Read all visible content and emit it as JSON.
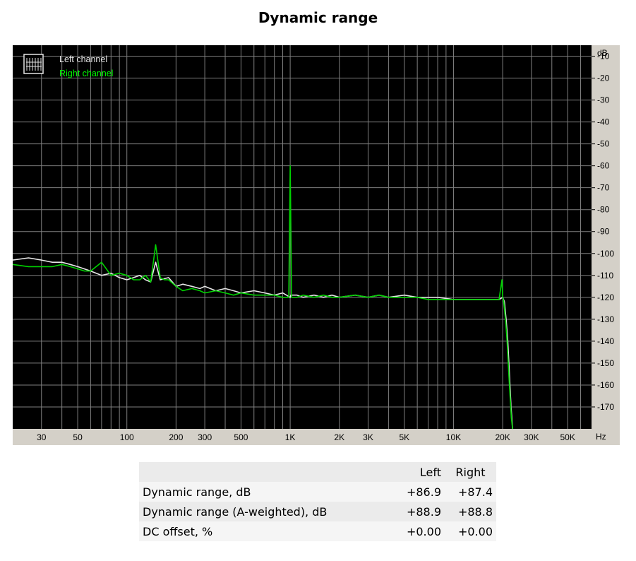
{
  "page": {
    "title": "Dynamic range"
  },
  "colors": {
    "plot_background": "#000000",
    "panel_background": "#d4d0c8",
    "grid": "#7f7f7f",
    "left_channel": "#e6e6e6",
    "right_channel": "#00d200",
    "legend_right_text": "#00ff00"
  },
  "chart_data": {
    "type": "line",
    "title": "Dynamic range",
    "x_unit": "Hz",
    "y_unit": "dB",
    "x_scale": "log",
    "xlim": [
      20,
      70000
    ],
    "ylim": [
      -180,
      -5
    ],
    "grid": true,
    "legend_position": "top-left",
    "x_ticks": [
      {
        "value": 30,
        "label": "30"
      },
      {
        "value": 50,
        "label": "50"
      },
      {
        "value": 100,
        "label": "100"
      },
      {
        "value": 200,
        "label": "200"
      },
      {
        "value": 300,
        "label": "300"
      },
      {
        "value": 500,
        "label": "500"
      },
      {
        "value": 1000,
        "label": "1K"
      },
      {
        "value": 2000,
        "label": "2K"
      },
      {
        "value": 3000,
        "label": "3K"
      },
      {
        "value": 5000,
        "label": "5K"
      },
      {
        "value": 10000,
        "label": "10K"
      },
      {
        "value": 20000,
        "label": "20K"
      },
      {
        "value": 30000,
        "label": "30K"
      },
      {
        "value": 50000,
        "label": "50K"
      }
    ],
    "y_ticks": [
      {
        "value": -10,
        "label": "-10"
      },
      {
        "value": -20,
        "label": "-20"
      },
      {
        "value": -30,
        "label": "-30"
      },
      {
        "value": -40,
        "label": "-40"
      },
      {
        "value": -50,
        "label": "-50"
      },
      {
        "value": -60,
        "label": "-60"
      },
      {
        "value": -70,
        "label": "-70"
      },
      {
        "value": -80,
        "label": "-80"
      },
      {
        "value": -90,
        "label": "-90"
      },
      {
        "value": -100,
        "label": "-100"
      },
      {
        "value": -110,
        "label": "-110"
      },
      {
        "value": -120,
        "label": "-120"
      },
      {
        "value": -130,
        "label": "-130"
      },
      {
        "value": -140,
        "label": "-140"
      },
      {
        "value": -150,
        "label": "-150"
      },
      {
        "value": -160,
        "label": "-160"
      },
      {
        "value": -170,
        "label": "-170"
      }
    ],
    "series": [
      {
        "name": "Left channel",
        "color": "#e6e6e6",
        "x": [
          20,
          25,
          30,
          35,
          40,
          45,
          50,
          60,
          70,
          80,
          90,
          100,
          110,
          120,
          130,
          140,
          150,
          160,
          180,
          200,
          220,
          250,
          280,
          300,
          350,
          400,
          450,
          500,
          600,
          700,
          800,
          900,
          1000,
          1010,
          1100,
          1200,
          1400,
          1600,
          1800,
          2000,
          2500,
          3000,
          3500,
          4000,
          5000,
          6000,
          7000,
          8000,
          10000,
          12000,
          14000,
          16000,
          18000,
          19000,
          20000,
          20500,
          21000,
          21500,
          22000,
          22500,
          23000
        ],
        "y": [
          -103,
          -102,
          -103,
          -104,
          -104,
          -105,
          -106,
          -108,
          -110,
          -109,
          -111,
          -112,
          -111,
          -110,
          -112,
          -113,
          -104,
          -112,
          -111,
          -115,
          -114,
          -115,
          -116,
          -115,
          -117,
          -116,
          -117,
          -118,
          -117,
          -118,
          -119,
          -118,
          -120,
          -119,
          -119,
          -120,
          -119,
          -120,
          -119,
          -120,
          -119,
          -120,
          -119,
          -120,
          -119,
          -120,
          -120,
          -120,
          -121,
          -121,
          -121,
          -121,
          -121,
          -121,
          -120,
          -122,
          -130,
          -140,
          -155,
          -170,
          -180
        ]
      },
      {
        "name": "Right channel",
        "color": "#00d200",
        "x": [
          20,
          25,
          30,
          35,
          40,
          45,
          50,
          55,
          60,
          70,
          80,
          90,
          100,
          110,
          120,
          130,
          140,
          150,
          160,
          170,
          180,
          200,
          220,
          250,
          280,
          300,
          350,
          400,
          450,
          500,
          600,
          700,
          800,
          900,
          980,
          1000,
          1020,
          1100,
          1200,
          1400,
          1600,
          1800,
          2000,
          2500,
          3000,
          3500,
          4000,
          5000,
          6000,
          7000,
          8000,
          10000,
          12000,
          14000,
          16000,
          18000,
          19000,
          19800,
          20000,
          20300,
          20800,
          21300,
          21800,
          22200,
          22600,
          23000
        ],
        "y": [
          -105,
          -106,
          -106,
          -106,
          -105,
          -106,
          -107,
          -108,
          -108,
          -104,
          -110,
          -109,
          -110,
          -112,
          -112,
          -110,
          -113,
          -96,
          -111,
          -112,
          -112,
          -115,
          -117,
          -116,
          -117,
          -118,
          -117,
          -118,
          -119,
          -118,
          -119,
          -119,
          -119,
          -120,
          -120,
          -60,
          -120,
          -120,
          -119,
          -120,
          -119,
          -120,
          -120,
          -119,
          -120,
          -119,
          -120,
          -120,
          -120,
          -121,
          -121,
          -121,
          -121,
          -121,
          -121,
          -121,
          -121,
          -112,
          -120,
          -122,
          -130,
          -140,
          -155,
          -165,
          -175,
          -185
        ]
      }
    ]
  },
  "results_table": {
    "headers": [
      "",
      "Left",
      "Right"
    ],
    "rows": [
      {
        "label": "Dynamic range, dB",
        "left": "+86.9",
        "right": "+87.4"
      },
      {
        "label": "Dynamic range (A-weighted), dB",
        "left": "+88.9",
        "right": "+88.8"
      },
      {
        "label": "DC offset, %",
        "left": "+0.00",
        "right": "+0.00"
      }
    ]
  }
}
